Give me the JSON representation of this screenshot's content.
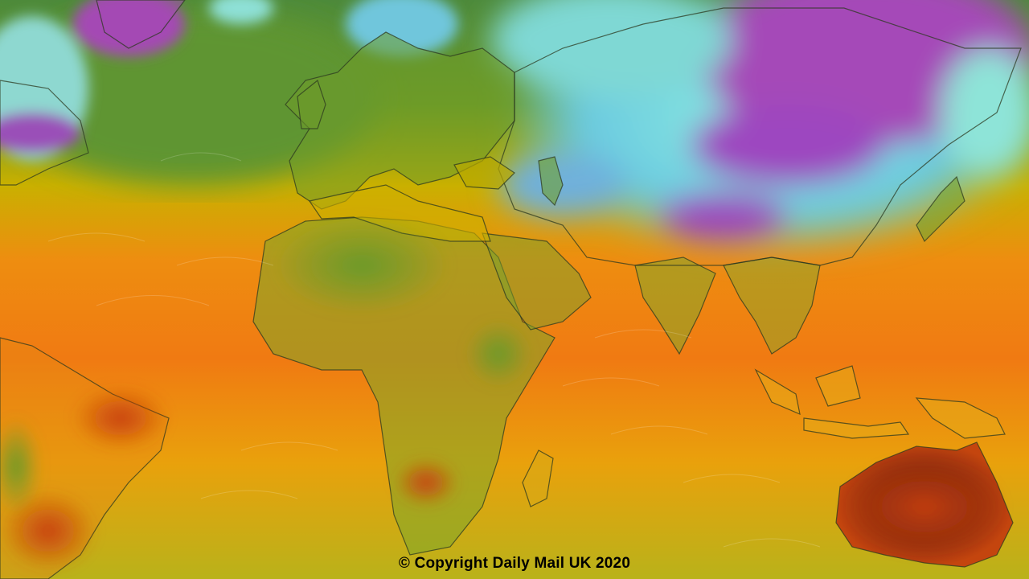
{
  "map": {
    "type": "global-temperature-heatmap",
    "color_scale": [
      "#9b3fb5",
      "#5aa0d8",
      "#7fe0d0",
      "#6e9e2c",
      "#d8b400",
      "#f07a10",
      "#8a2a10"
    ],
    "regions_shown": [
      "North America",
      "South America",
      "Europe",
      "Africa",
      "Asia",
      "Australia",
      "Atlantic Ocean",
      "Indian Ocean"
    ]
  },
  "caption": "© Copyright Daily Mail UK 2020"
}
